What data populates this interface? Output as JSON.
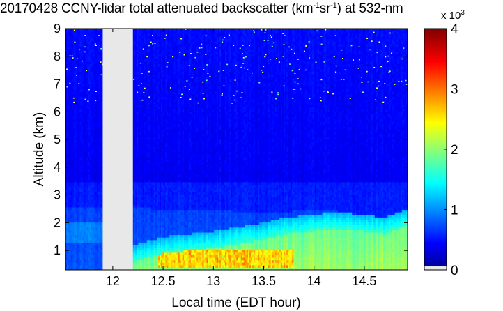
{
  "title": {
    "prefix": "20170428 CCNY-lidar total attenuated backscatter (km",
    "sup1": "-1",
    "mid": "sr",
    "sup2": "-1",
    "suffix": ") at 532-nm"
  },
  "colorbar": {
    "exponent_base": "x 10",
    "exponent": "3",
    "ticks": [
      0,
      1,
      2,
      3,
      4
    ],
    "range": [
      0,
      4
    ],
    "colormap": "jet"
  },
  "chart_data": {
    "type": "heatmap",
    "xlabel": "Local time (EDT hour)",
    "ylabel": "Altitude (km)",
    "xticks": [
      12,
      12.5,
      13,
      13.5,
      14,
      14.5
    ],
    "yticks": [
      1,
      2,
      3,
      4,
      5,
      6,
      7,
      8,
      9
    ],
    "xlim": [
      11.53,
      14.93
    ],
    "ylim": [
      0.3,
      9
    ],
    "no_data_gap": [
      11.9,
      12.2
    ],
    "no_data_color": "#e8e8e8",
    "value_scale": 1000,
    "boundary_layer_top_km": {
      "x": [
        11.53,
        11.9,
        12.2,
        12.5,
        13.0,
        13.5,
        13.7,
        14.0,
        14.2,
        14.5,
        14.7,
        14.93
      ],
      "y": [
        2.6,
        2.6,
        2.55,
        2.5,
        2.45,
        2.4,
        2.4,
        2.5,
        2.45,
        2.3,
        2.2,
        2.1
      ]
    },
    "mixed_layer_top_km": {
      "x": [
        12.2,
        12.5,
        13.0,
        13.5,
        13.7,
        14.0,
        14.2,
        14.5,
        14.7,
        14.93
      ],
      "y": [
        0.6,
        0.9,
        1.1,
        1.4,
        1.6,
        1.7,
        1.8,
        1.7,
        1.6,
        1.9
      ]
    },
    "max_backscatter_region": {
      "x": [
        12.45,
        13.8
      ],
      "y": [
        0.35,
        1.0
      ],
      "value_x1000": 3.0
    }
  }
}
